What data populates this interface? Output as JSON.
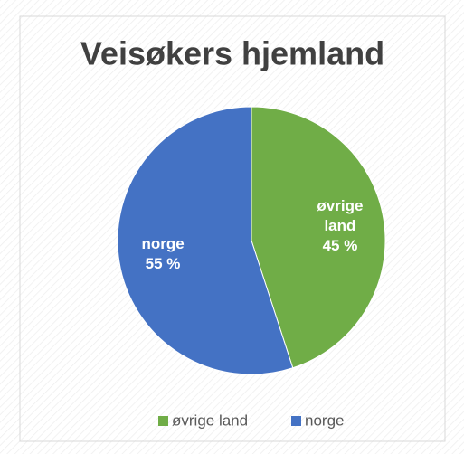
{
  "chart_data": {
    "type": "pie",
    "title": "Veisøkers hjemland",
    "categories": [
      "øvrige land",
      "norge"
    ],
    "label_lines": [
      [
        "øvrige",
        "land"
      ],
      [
        "norge"
      ]
    ],
    "values": [
      45,
      55
    ],
    "value_labels": [
      "45 %",
      "55 %"
    ],
    "colors": [
      "#70ad47",
      "#4472c4"
    ],
    "legend": "bottom"
  }
}
